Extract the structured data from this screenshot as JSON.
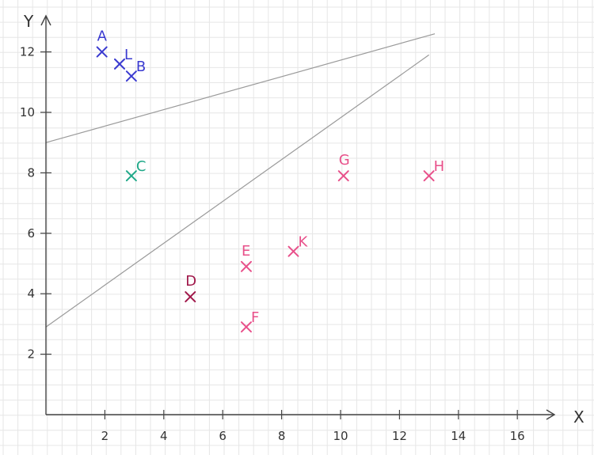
{
  "chart_data": {
    "type": "scatter",
    "xlabel": "X",
    "ylabel": "Y",
    "xlim": [
      0,
      17
    ],
    "ylim": [
      0,
      13
    ],
    "grid": true,
    "x_ticks": [
      2,
      4,
      6,
      8,
      10,
      12,
      14,
      16
    ],
    "y_ticks": [
      2,
      4,
      6,
      8,
      10,
      12
    ],
    "points": [
      {
        "label": "A",
        "x": 1.9,
        "y": 12.0,
        "color": "#3a3ad0"
      },
      {
        "label": "L",
        "x": 2.5,
        "y": 11.6,
        "color": "#3a3ad0"
      },
      {
        "label": "B",
        "x": 2.9,
        "y": 11.2,
        "color": "#3a3ad0"
      },
      {
        "label": "C",
        "x": 2.9,
        "y": 7.9,
        "color": "#1fa888"
      },
      {
        "label": "D",
        "x": 4.9,
        "y": 3.9,
        "color": "#a0184a"
      },
      {
        "label": "E",
        "x": 6.8,
        "y": 4.9,
        "color": "#e8508a"
      },
      {
        "label": "F",
        "x": 6.8,
        "y": 2.9,
        "color": "#e8508a"
      },
      {
        "label": "K",
        "x": 8.4,
        "y": 5.4,
        "color": "#e8508a"
      },
      {
        "label": "G",
        "x": 10.1,
        "y": 7.9,
        "color": "#e8508a"
      },
      {
        "label": "H",
        "x": 13.0,
        "y": 7.9,
        "color": "#e8508a"
      }
    ],
    "lines": [
      {
        "x1": 0,
        "y1": 9.0,
        "x2": 13.2,
        "y2": 12.6
      },
      {
        "x1": 0,
        "y1": 2.9,
        "x2": 13.0,
        "y2": 11.9
      }
    ]
  }
}
